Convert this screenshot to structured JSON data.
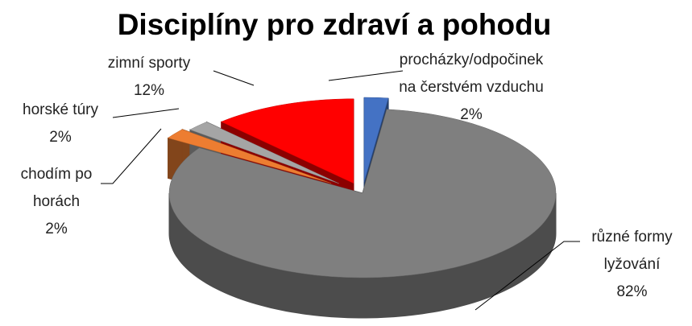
{
  "chart_data": {
    "type": "pie3d",
    "title": "Disciplíny pro zdraví a pohodu",
    "categories": [
      "procházky/odpočinek na čerstvém vzduchu",
      "různé formy lyžování",
      "chodím po horách",
      "horské túry",
      "zimní sporty"
    ],
    "values": [
      2,
      82,
      2,
      2,
      12
    ],
    "value_labels": [
      "2%",
      "82%",
      "2%",
      "2%",
      "12%"
    ],
    "colors": [
      "#4472c4",
      "#7f7f7f",
      "#ed7d31",
      "#a5a5a5",
      "#ff0000"
    ]
  }
}
